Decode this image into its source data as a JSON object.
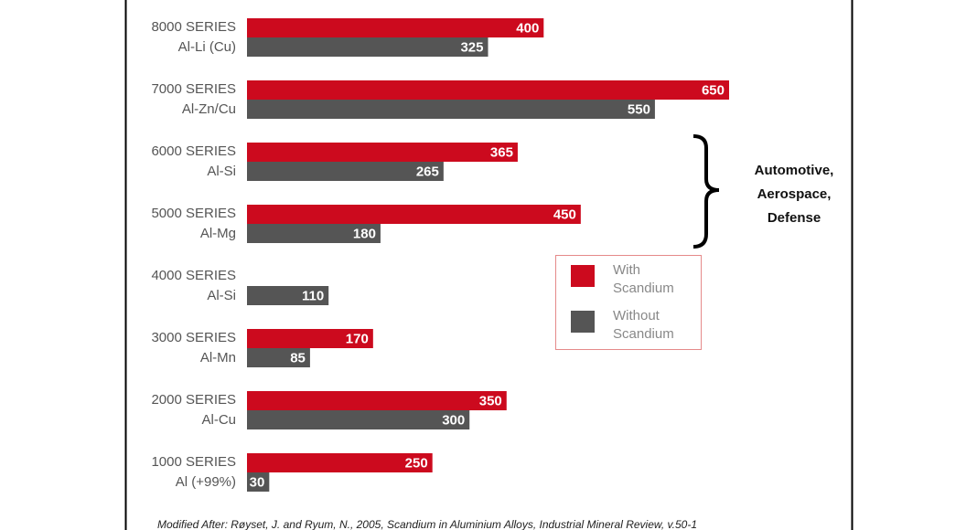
{
  "chart_data": {
    "type": "bar",
    "orientation": "horizontal",
    "categories": [
      "8000 SERIES\nAl-Li (Cu)",
      "7000 SERIES\nAl-Zn/Cu",
      "6000 SERIES\nAl-Si",
      "5000 SERIES\nAl-Mg",
      "4000 SERIES\nAl-Si",
      "3000 SERIES\nAl-Mn",
      "2000 SERIES\nAl-Cu",
      "1000 SERIES\nAl (+99%)"
    ],
    "series": [
      {
        "name": "With Scandium",
        "color": "#cc0a1e",
        "values": [
          400,
          650,
          365,
          450,
          null,
          170,
          350,
          250
        ]
      },
      {
        "name": "Without Scandium",
        "color": "#555555",
        "values": [
          325,
          550,
          265,
          180,
          110,
          85,
          300,
          30
        ]
      }
    ],
    "xlim": [
      0,
      650
    ],
    "annotation": "Automotive,\nAerospace,\nDefense",
    "footnote": "Modified After: Røyset, J. and Ryum, N., 2005, Scandium in Aluminium Alloys, Industrial Mineral Review, v.50-1"
  }
}
